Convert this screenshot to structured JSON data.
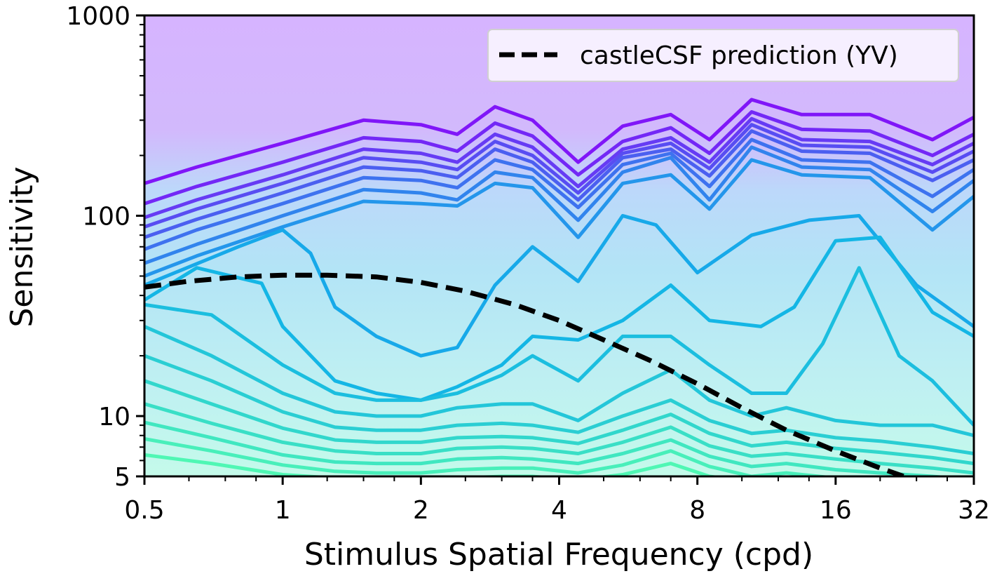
{
  "chart_data": {
    "type": "contour",
    "xlabel": "Stimulus Spatial Frequency (cpd)",
    "ylabel": "Sensitivity",
    "x_scale": "log2",
    "y_scale": "log10",
    "xlim": [
      0.5,
      32
    ],
    "ylim": [
      5,
      1000
    ],
    "x_ticks": [
      0.5,
      1,
      2,
      4,
      8,
      16,
      32
    ],
    "x_tick_labels": [
      "0.5",
      "1",
      "2",
      "4",
      "8",
      "16",
      "32"
    ],
    "y_ticks": [
      5,
      10,
      100,
      1000
    ],
    "y_tick_labels": [
      "5",
      "10",
      "100",
      "1000"
    ],
    "legend": {
      "placement": "top-right",
      "entries": [
        "castleCSF prediction (YV)"
      ]
    },
    "colors": {
      "contour_low": "#4ff7b4",
      "contour_mid": "#10b2e8",
      "contour_high": "#8016f8",
      "fill_top": "#d6b4ff",
      "prediction": "#000000"
    },
    "series": [
      {
        "name": "castleCSF prediction (YV)",
        "style": "dashed",
        "x": [
          0.5,
          0.62,
          0.8,
          1.0,
          1.25,
          1.6,
          2.0,
          2.5,
          3.2,
          4.0,
          5.0,
          6.3,
          8.0,
          10.0,
          12.5,
          16.0,
          20.0,
          25.0
        ],
        "y": [
          44,
          47,
          49.5,
          50.5,
          50.5,
          49.5,
          46.5,
          42,
          36,
          30,
          24,
          19,
          14.5,
          11,
          8.5,
          6.7,
          5.5,
          4.6
        ]
      }
    ],
    "contours": [
      {
        "x": [
          0.5,
          0.65,
          1.0,
          1.5,
          2.0,
          2.4,
          2.9,
          3.5,
          4.4,
          5.5,
          7.0,
          8.5,
          10.5,
          13.5,
          19.0,
          26.0,
          32.0
        ],
        "y": [
          145,
          175,
          230,
          300,
          285,
          255,
          350,
          300,
          185,
          280,
          320,
          240,
          380,
          320,
          320,
          240,
          310
        ]
      },
      {
        "x": [
          0.5,
          0.65,
          1.0,
          1.5,
          2.0,
          2.4,
          2.9,
          3.5,
          4.4,
          5.5,
          7.0,
          8.5,
          10.5,
          13.5,
          19.0,
          26.0,
          32.0
        ],
        "y": [
          115,
          140,
          185,
          245,
          235,
          210,
          290,
          250,
          160,
          235,
          275,
          205,
          330,
          270,
          265,
          200,
          255
        ]
      },
      {
        "x": [
          0.5,
          0.65,
          1.0,
          1.5,
          2.0,
          2.4,
          2.9,
          3.5,
          4.4,
          5.5,
          7.0,
          8.5,
          10.5,
          13.5,
          19.0,
          26.0,
          32.0
        ],
        "y": [
          98,
          120,
          160,
          215,
          205,
          185,
          255,
          220,
          140,
          215,
          245,
          185,
          305,
          240,
          235,
          180,
          230
        ]
      },
      {
        "x": [
          0.5,
          0.65,
          1.0,
          1.5,
          2.0,
          2.4,
          2.9,
          3.5,
          4.4,
          5.5,
          7.0,
          8.5,
          10.5,
          13.5,
          19.0,
          26.0,
          32.0
        ],
        "y": [
          88,
          108,
          145,
          195,
          185,
          170,
          235,
          200,
          130,
          205,
          230,
          172,
          285,
          225,
          220,
          165,
          210
        ]
      },
      {
        "x": [
          0.5,
          0.65,
          1.0,
          1.5,
          2.0,
          2.4,
          2.9,
          3.5,
          4.4,
          5.5,
          7.0,
          8.5,
          10.5,
          13.5,
          19.0,
          26.0,
          32.0
        ],
        "y": [
          78,
          96,
          130,
          175,
          168,
          155,
          215,
          185,
          120,
          195,
          215,
          158,
          265,
          210,
          205,
          150,
          190
        ]
      },
      {
        "x": [
          0.5,
          0.65,
          1.0,
          1.5,
          2.0,
          2.4,
          2.9,
          3.5,
          4.4,
          5.5,
          7.0,
          8.5,
          10.5,
          13.5,
          19.0,
          26.0,
          32.0
        ],
        "y": [
          68,
          85,
          115,
          155,
          150,
          138,
          190,
          170,
          110,
          180,
          205,
          140,
          240,
          190,
          185,
          125,
          170
        ]
      },
      {
        "x": [
          0.5,
          0.65,
          1.0,
          1.5,
          2.0,
          2.4,
          2.9,
          3.5,
          4.4,
          5.5,
          7.0,
          8.5,
          10.5,
          13.5,
          19.0,
          26.0,
          32.0
        ],
        "y": [
          58,
          72,
          100,
          135,
          130,
          120,
          165,
          155,
          95,
          165,
          195,
          120,
          220,
          175,
          170,
          105,
          150
        ]
      },
      {
        "x": [
          0.5,
          0.65,
          1.0,
          1.5,
          2.0,
          2.4,
          2.9,
          3.5,
          4.4,
          5.5,
          7.0,
          8.5,
          10.5,
          13.5,
          19.0,
          26.0,
          32.0
        ],
        "y": [
          50,
          63,
          88,
          118,
          115,
          112,
          145,
          138,
          78,
          145,
          160,
          108,
          190,
          160,
          155,
          85,
          125
        ]
      },
      {
        "x": [
          0.5,
          0.8,
          1.0,
          1.15,
          1.3,
          1.6,
          2.0,
          2.4,
          2.9,
          3.5,
          4.4,
          5.5,
          6.5,
          8.0,
          10.5,
          14.0,
          18.0,
          24.0,
          32.0
        ],
        "y": [
          45,
          70,
          85,
          65,
          35,
          25,
          20,
          22,
          45,
          70,
          47,
          100,
          90,
          52,
          80,
          95,
          100,
          45,
          28
        ]
      },
      {
        "x": [
          0.5,
          0.65,
          0.9,
          1.0,
          1.3,
          1.6,
          2.0,
          2.4,
          3.0,
          3.5,
          4.4,
          5.5,
          7.0,
          8.5,
          11.0,
          13.0,
          16.0,
          20.0,
          26.0,
          32.0
        ],
        "y": [
          38,
          55,
          46,
          28,
          15,
          13,
          12,
          14,
          18,
          25,
          24,
          30,
          45,
          30,
          28,
          35,
          75,
          78,
          33,
          25
        ]
      },
      {
        "x": [
          0.5,
          0.7,
          1.0,
          1.3,
          1.6,
          2.0,
          2.4,
          3.0,
          3.5,
          4.4,
          5.5,
          7.0,
          8.5,
          10.5,
          12.5,
          15.0,
          18.0,
          22.0,
          26.0,
          32.0
        ],
        "y": [
          36,
          32,
          18,
          13,
          12,
          12,
          13,
          16,
          20,
          15,
          25,
          25,
          18,
          13,
          13,
          23,
          55,
          20,
          15,
          9
        ]
      },
      {
        "x": [
          0.5,
          0.7,
          1.0,
          1.3,
          1.6,
          2.0,
          2.4,
          3.0,
          3.5,
          4.4,
          5.5,
          7.0,
          8.5,
          10.5,
          12.5,
          16.0,
          20.0,
          26.0,
          32.0
        ],
        "y": [
          28,
          20,
          13,
          10.5,
          10,
          10,
          11,
          11.5,
          11.5,
          9.5,
          13,
          17,
          12,
          10,
          11,
          9.5,
          9,
          9,
          8
        ]
      },
      {
        "x": [
          0.5,
          0.7,
          1.0,
          1.3,
          1.6,
          2.0,
          2.4,
          3.0,
          3.5,
          4.4,
          5.5,
          7.0,
          8.5,
          10.5,
          12.5,
          16.0,
          20.0,
          26.0,
          32.0
        ],
        "y": [
          20,
          15,
          10.5,
          8.8,
          8.5,
          8.5,
          9,
          9.2,
          9,
          8.3,
          10,
          12,
          9.5,
          8.2,
          8.5,
          7.8,
          7.5,
          7.0,
          6.5
        ]
      },
      {
        "x": [
          0.5,
          0.7,
          1.0,
          1.3,
          1.6,
          2.0,
          2.4,
          3.0,
          3.5,
          4.4,
          5.5,
          7.0,
          8.5,
          10.5,
          12.5,
          16.0,
          20.0,
          26.0,
          32.0
        ],
        "y": [
          15,
          11.5,
          8.7,
          7.6,
          7.4,
          7.4,
          7.8,
          7.9,
          7.8,
          7.3,
          8.5,
          10.2,
          8.2,
          7.1,
          7.4,
          6.9,
          6.6,
          6.2,
          5.8
        ]
      },
      {
        "x": [
          0.5,
          0.7,
          1.0,
          1.3,
          1.6,
          2.0,
          2.4,
          3.0,
          3.5,
          4.4,
          5.5,
          7.0,
          8.5,
          10.5,
          12.5,
          16.0,
          20.0,
          26.0,
          32.0
        ],
        "y": [
          11.5,
          9.2,
          7.4,
          6.7,
          6.5,
          6.5,
          6.9,
          7.0,
          6.9,
          6.5,
          7.4,
          8.8,
          7.1,
          6.3,
          6.5,
          6.1,
          5.8,
          5.5,
          5.2
        ]
      },
      {
        "x": [
          0.5,
          0.7,
          1.0,
          1.3,
          1.6,
          2.0,
          2.4,
          3.0,
          3.5,
          4.4,
          5.5,
          7.0,
          8.5,
          10.5,
          12.5,
          16.0,
          20.0,
          26.0,
          32.0
        ],
        "y": [
          9.3,
          7.8,
          6.4,
          5.9,
          5.8,
          5.8,
          6.1,
          6.2,
          6.1,
          5.8,
          6.5,
          7.6,
          6.3,
          5.6,
          5.8,
          5.4,
          5.2,
          5.0,
          4.8
        ]
      },
      {
        "x": [
          0.5,
          0.7,
          1.0,
          1.3,
          1.6,
          2.0,
          2.4,
          3.0,
          3.5,
          4.4,
          5.5,
          7.0,
          8.5,
          10.5,
          12.5,
          16.0,
          20.0,
          26.0,
          32.0
        ],
        "y": [
          7.7,
          6.7,
          5.7,
          5.3,
          5.2,
          5.2,
          5.4,
          5.5,
          5.5,
          5.2,
          5.7,
          6.7,
          5.6,
          5.0,
          5.2,
          4.9,
          4.7,
          4.6,
          4.5
        ]
      },
      {
        "x": [
          0.5,
          0.7,
          1.0,
          1.3,
          1.6,
          2.0,
          2.4,
          3.0,
          3.5,
          4.4,
          5.5,
          7.0,
          8.5,
          10.5,
          12.5,
          16.0
        ],
        "y": [
          6.4,
          5.8,
          5.1,
          4.9,
          4.8,
          4.8,
          4.9,
          5.0,
          5.0,
          4.8,
          5.1,
          5.8,
          5.0,
          4.7,
          4.8,
          4.6
        ]
      }
    ]
  }
}
